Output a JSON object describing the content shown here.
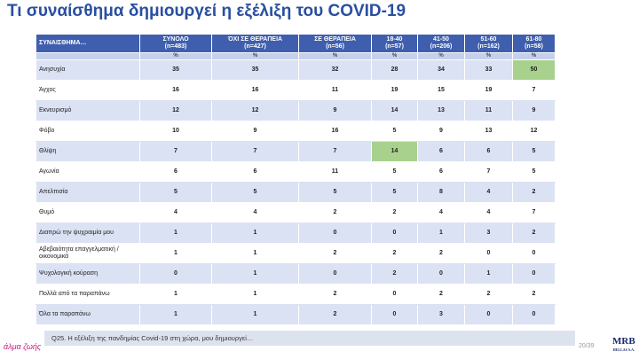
{
  "title": "Τι συναίσθημα δημιουργεί η εξέλιξη του COVID-19",
  "table": {
    "corner": "ΣΥΝΑΙΣΘΗΜΑ…",
    "columns": [
      {
        "label": "ΣΥΝΟΛΟ",
        "n": "(n=483)"
      },
      {
        "label": "ΌΧΙ ΣΕ ΘΕΡΑΠΕΙΑ",
        "n": "(n=427)"
      },
      {
        "label": "ΣΕ ΘΕΡΑΠΕΙΑ",
        "n": "(n=56)"
      },
      {
        "label": "18-40",
        "n": "(n=57)"
      },
      {
        "label": "41-50",
        "n": "(n=206)"
      },
      {
        "label": "51-60",
        "n": "(n=162)"
      },
      {
        "label": "61-80",
        "n": "(n=58)"
      }
    ],
    "unit": "%",
    "rows": [
      {
        "label": "Ανησυχία",
        "values": [
          35,
          35,
          32,
          28,
          34,
          33,
          50
        ]
      },
      {
        "label": "Άγχος",
        "values": [
          16,
          16,
          11,
          19,
          15,
          19,
          7
        ]
      },
      {
        "label": "Εκνευρισμό",
        "values": [
          12,
          12,
          9,
          14,
          13,
          11,
          9
        ]
      },
      {
        "label": "Φόβο",
        "values": [
          10,
          9,
          16,
          5,
          9,
          13,
          12
        ]
      },
      {
        "label": "Θλίψη",
        "values": [
          7,
          7,
          7,
          14,
          6,
          6,
          5
        ]
      },
      {
        "label": "Αγωνία",
        "values": [
          6,
          6,
          11,
          5,
          6,
          7,
          5
        ]
      },
      {
        "label": "Απελπισία",
        "values": [
          5,
          5,
          5,
          5,
          8,
          4,
          2
        ]
      },
      {
        "label": "Θυμό",
        "values": [
          4,
          4,
          2,
          2,
          4,
          4,
          7
        ]
      },
      {
        "label": "Διαπρώ την ψυχραιμία μου",
        "values": [
          1,
          1,
          0,
          0,
          1,
          3,
          2
        ]
      },
      {
        "label": "Αβεβαιότητα επαγγελματική / οικονομικά",
        "values": [
          1,
          1,
          2,
          2,
          2,
          0,
          0
        ]
      },
      {
        "label": "Ψυχολογική κούραση",
        "values": [
          0,
          1,
          0,
          2,
          0,
          1,
          0
        ]
      },
      {
        "label": "Πολλά από τα παραπάνω",
        "values": [
          1,
          1,
          2,
          0,
          2,
          2,
          2
        ]
      },
      {
        "label": "Όλα τα παραπάνω",
        "values": [
          1,
          1,
          2,
          0,
          3,
          0,
          0
        ]
      }
    ],
    "highlight_color": "#a9d18e",
    "highlights": [
      {
        "row": 0,
        "col": 6
      },
      {
        "row": 4,
        "col": 3
      }
    ]
  },
  "footer": {
    "question": "Q25. Η εξέλιξη της πανδημίας Covid-19 στη χώρα, μου δημιουργεί…",
    "page": "20/39",
    "logo_left": "άλμα ζωής",
    "logo_right": "MRB",
    "logo_right_sub": "HELLAS S.A."
  }
}
